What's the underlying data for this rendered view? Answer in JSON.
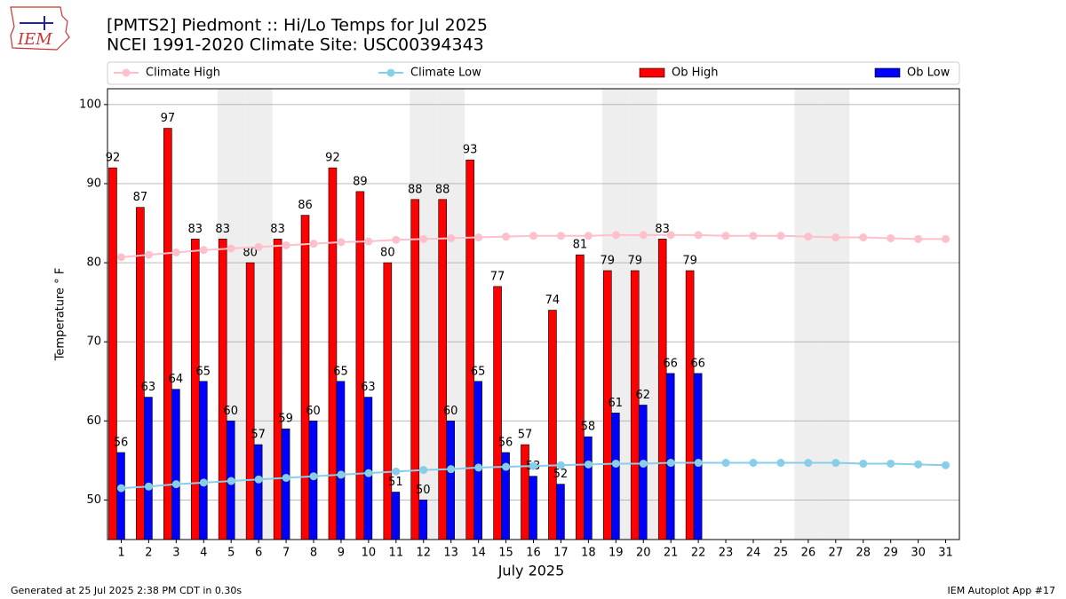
{
  "logo": "IEM",
  "footer_left": "Generated at 25 Jul 2025 2:38 PM CDT in 0.30s",
  "footer_right": "IEM Autoplot App #17",
  "chart_data": {
    "type": "bar",
    "title": "[PMTS2] Piedmont :: Hi/Lo Temps for Jul 2025",
    "subtitle": "NCEI 1991-2020 Climate Site: USC00394343",
    "y_label": "Temperature ° F",
    "x_label": "July 2025",
    "categories": [
      "1",
      "2",
      "3",
      "4",
      "5",
      "6",
      "7",
      "8",
      "9",
      "10",
      "11",
      "12",
      "13",
      "14",
      "15",
      "16",
      "17",
      "18",
      "19",
      "20",
      "21",
      "22",
      "23",
      "24",
      "25",
      "26",
      "27",
      "28",
      "29",
      "30",
      "31"
    ],
    "shaded_categories": [
      4,
      5,
      11,
      12,
      18,
      19,
      25,
      26
    ],
    "shade_color": "#eeeeee",
    "series": [
      {
        "name": "Climate High",
        "kind": "line",
        "color": "#ffc0cb",
        "values": [
          80.7,
          81.0,
          81.3,
          81.6,
          81.8,
          82.0,
          82.2,
          82.4,
          82.6,
          82.7,
          82.9,
          83.0,
          83.1,
          83.2,
          83.3,
          83.4,
          83.4,
          83.4,
          83.5,
          83.5,
          83.5,
          83.5,
          83.4,
          83.4,
          83.4,
          83.3,
          83.2,
          83.2,
          83.1,
          83.0,
          83.0
        ]
      },
      {
        "name": "Climate Low",
        "kind": "line",
        "color": "#87ceeb",
        "values": [
          51.5,
          51.7,
          52.0,
          52.2,
          52.4,
          52.6,
          52.8,
          53.0,
          53.2,
          53.4,
          53.6,
          53.8,
          53.9,
          54.1,
          54.2,
          54.3,
          54.4,
          54.5,
          54.6,
          54.6,
          54.7,
          54.7,
          54.7,
          54.7,
          54.7,
          54.7,
          54.7,
          54.6,
          54.6,
          54.5,
          54.4
        ]
      },
      {
        "name": "Ob High",
        "kind": "bar",
        "color": "#ff0000",
        "values": [
          92,
          87,
          97,
          83,
          83,
          80,
          83,
          86,
          92,
          89,
          80,
          88,
          88,
          93,
          77,
          57,
          74,
          81,
          79,
          79,
          83,
          79,
          null,
          null,
          null,
          null,
          null,
          null,
          null,
          null,
          null
        ]
      },
      {
        "name": "Ob Low",
        "kind": "bar",
        "color": "#0000ff",
        "values": [
          56,
          63,
          64,
          65,
          60,
          57,
          59,
          60,
          65,
          63,
          51,
          50,
          60,
          65,
          56,
          53,
          52,
          58,
          61,
          62,
          66,
          66,
          null,
          null,
          null,
          null,
          null,
          null,
          null,
          null,
          null
        ]
      }
    ],
    "ylim": [
      45,
      102
    ],
    "yticks": [
      50,
      60,
      70,
      80,
      90,
      100
    ],
    "grid": true
  }
}
